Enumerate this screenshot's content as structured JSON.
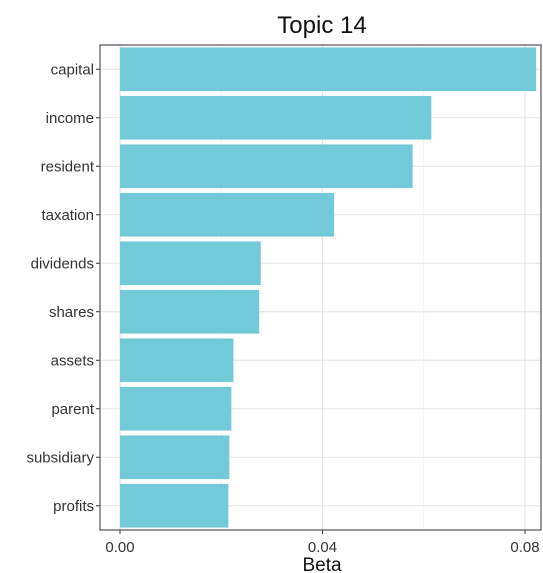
{
  "chart_data": {
    "type": "bar",
    "orientation": "horizontal",
    "title": "Topic   14",
    "xlabel": "Beta",
    "ylabel": "",
    "categories": [
      "capital",
      "income",
      "resident",
      "taxation",
      "dividends",
      "shares",
      "assets",
      "parent",
      "subsidiary",
      "profits"
    ],
    "values": [
      0.0822,
      0.0615,
      0.0578,
      0.0423,
      0.0278,
      0.0275,
      0.0224,
      0.022,
      0.0216,
      0.0214
    ],
    "xlim": [
      0,
      0.084
    ],
    "xticks": [
      0.0,
      0.04,
      0.08
    ],
    "xtick_labels": [
      "0.00",
      "0.04",
      "0.08"
    ],
    "bar_color": "#72CAD8",
    "grid": true,
    "legend": "none"
  }
}
